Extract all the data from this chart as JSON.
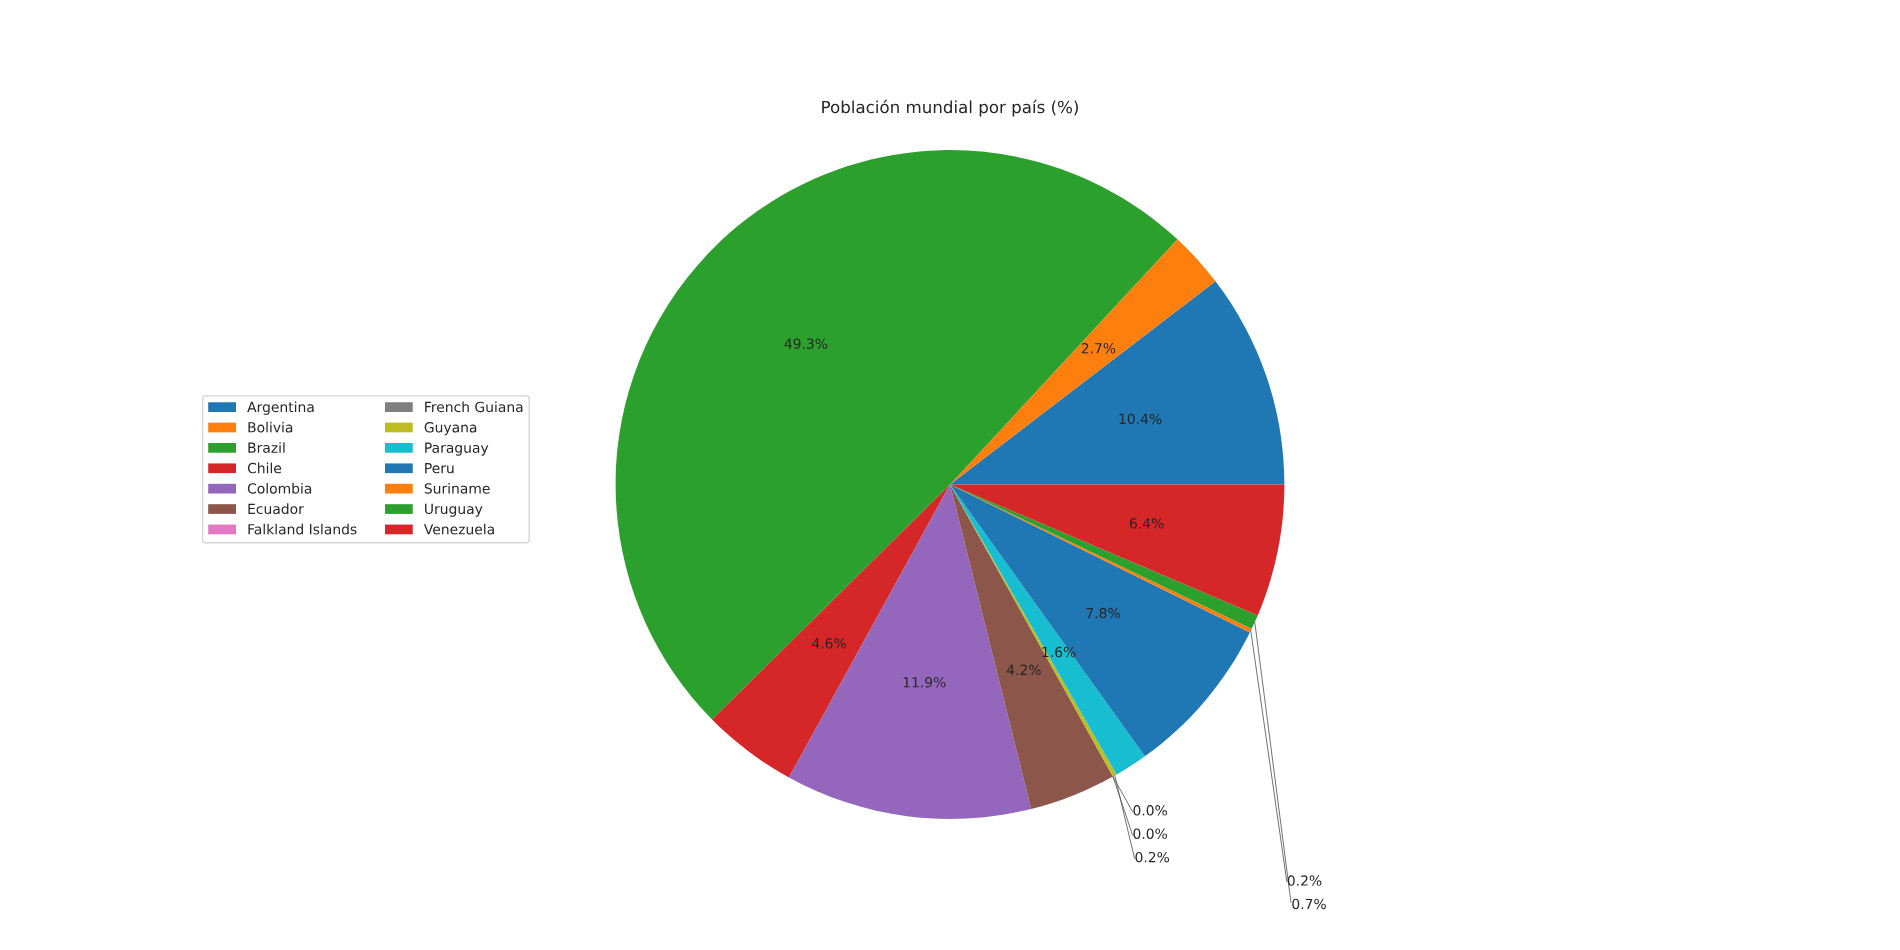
{
  "chart_data": {
    "type": "pie",
    "title": "Población mundial por país (%)",
    "categories": [
      "Argentina",
      "Bolivia",
      "Brazil",
      "Chile",
      "Colombia",
      "Ecuador",
      "Falkland Islands",
      "French Guiana",
      "Guyana",
      "Paraguay",
      "Peru",
      "Suriname",
      "Uruguay",
      "Venezuela"
    ],
    "values": [
      10.4,
      2.7,
      49.3,
      4.6,
      11.9,
      4.2,
      0.0,
      0.0,
      0.2,
      1.6,
      7.8,
      0.2,
      0.7,
      6.4
    ],
    "value_labels": [
      "10.4%",
      "2.7%",
      "49.3%",
      "4.6%",
      "11.9%",
      "4.2%",
      "0.0%",
      "0.0%",
      "0.2%",
      "1.6%",
      "7.8%",
      "0.2%",
      "0.7%",
      "6.4%"
    ],
    "colors": [
      "#1f77b4",
      "#ff7f0e",
      "#2ca02c",
      "#d62728",
      "#9467bd",
      "#8c564b",
      "#e377c2",
      "#7f7f7f",
      "#bcbd22",
      "#17becf",
      "#1f77b4",
      "#ff7f0e",
      "#2ca02c",
      "#d62728"
    ],
    "legend": "left"
  }
}
